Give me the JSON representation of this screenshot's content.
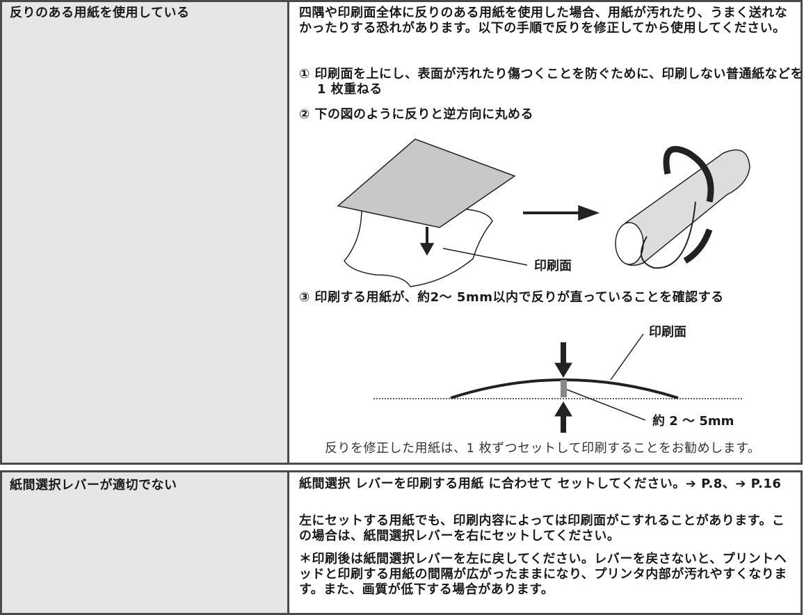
{
  "rows": [
    {
      "issue": "反りのある用紙を使用している",
      "intro": "四隅や印刷面全体に反りのある用紙を使用した場合、用紙が汚れたり、うまく送れなかったりする恐れがあります。以下の手順で反りを修正してから使用してください。",
      "steps": [
        "① 印刷面を上にし、表面が汚れたり傷つくことを防ぐために、印刷しない普通紙などを 1 枚重ねる",
        "② 下の図のように反りと逆方向に丸める",
        "③ 印刷する用紙が、約2～ 5mm以内で反りが直っていることを確認する"
      ],
      "figure1_label": "印刷面",
      "figure2_labels": [
        "印刷面",
        "約 2 ～ 5mm"
      ],
      "note": "反りを修正した用紙は、1 枚ずつセットして印刷することをお勧めします。"
    },
    {
      "issue": "紙間選択レバーが適切でない",
      "paragraphs": [
        "紙間選択 レバーを印刷する用紙 に合わせて セットしてください。➔ P.8、➔ P.16",
        "左にセットする用紙でも、印刷内容によっては印刷面がこすれることがあります。この場合は、紙間選択レバーを右にセットしてください。",
        "＊印刷後は紙間選択レバーを左に戻してください。レバーを戻さないと、プリントヘッドと印刷する用紙の間隔が広がったままになり、プリンタ内部が汚れやすくなります。また、画質が低下する場合があります。"
      ]
    }
  ]
}
